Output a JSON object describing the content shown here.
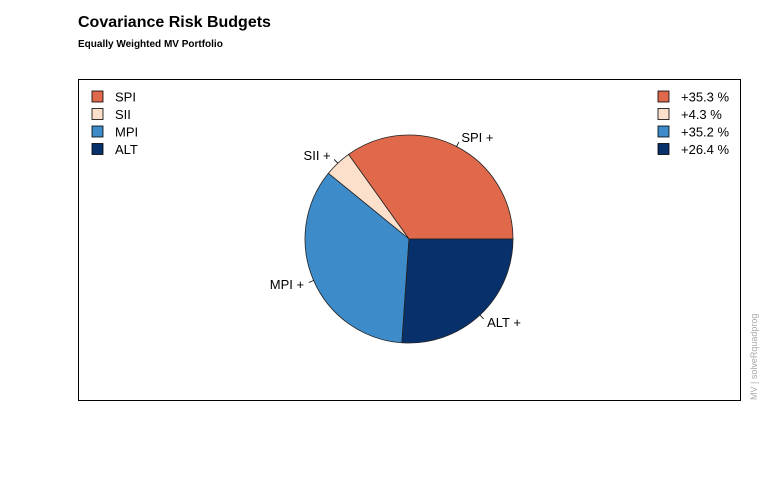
{
  "chart_data": {
    "type": "pie",
    "title": "Covariance Risk Budgets",
    "subtitle": "Equally Weighted MV Portfolio",
    "categories": [
      "SPI",
      "SII",
      "MPI",
      "ALT"
    ],
    "values": [
      35.3,
      4.3,
      35.2,
      26.4
    ],
    "slice_labels": [
      "SPI +",
      "SII +",
      "MPI +",
      "ALT +"
    ],
    "value_labels": [
      "+35.3 %",
      "+4.3 %",
      "+35.2 %",
      "+26.4 %"
    ],
    "colors": [
      "#e0694b",
      "#fde0cc",
      "#3d8bc9",
      "#08306b"
    ],
    "legend_left": "top-left",
    "legend_right": "top-right",
    "side_note": "MV | solveRquadprog"
  }
}
